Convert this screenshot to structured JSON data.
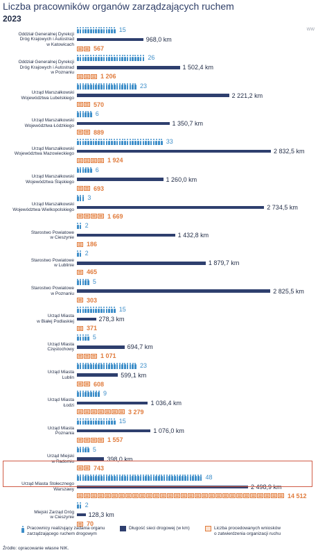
{
  "header": {
    "title": "Liczba pracowników organów zarządzających ruchem",
    "year": "2023",
    "watermark": "WW"
  },
  "legend": {
    "employees": "Pracownicy realizujący zadania organu\nzarządzającego ruchem drogowym",
    "road_length": "Długość sieci drogowej (w km)",
    "requests": "Liczba procedowanych wniosków\no zatwierdzenia organizacji ruchu"
  },
  "source": "Źródło: opracowanie własne NIK.",
  "colors": {
    "employees": "#3d8ec9",
    "road_length": "#2e3f6e",
    "requests": "#e07b3c",
    "highlight_border": "#d05b45"
  },
  "highlighted_category": "Urząd Miasta Stołecznego Warszawy",
  "chart_data": {
    "type": "bar",
    "title": "Liczba pracowników organów zarządzających ruchem",
    "subtitle": "2023",
    "categories": [
      "Oddział Generalnej Dyrekcji\nDróg Krajowych i Autostrad\nw Katowicach",
      "Oddział Generalnej Dyrekcji\nDróg Krajowych i Autostrad\nw Poznaniu",
      "Urząd Marszałkowski\nWojewództwa Lubelskiego",
      "Urząd Marszałkowski\nWojewództwa Łódzkiego",
      "Urząd Marszałkowski\nWojewództwa Mazowieckiego",
      "Urząd Marszałkowski\nWojewództwa Śląskiego",
      "Urząd Marszałkowski\nWojewództwa Wielkopolskiego",
      "Starostwo Powiatowe\nw Cieszynie",
      "Starostwo Powiatowe\nw Lublinie",
      "Starostwo Powiatowe\nw Poznaniu",
      "Urząd Miasta\nw Białej Podlaskiej",
      "Urząd Miasta\nCzęstochowy",
      "Urząd Miasta\nLublin",
      "Urząd Miasta\nŁodzi",
      "Urząd Miasta\nPoznania",
      "Urząd Miejski\nw Radomiu",
      "Urząd Miasta Stołecznego\nWarszawy",
      "Miejski Zarząd Dróg\nw Cieszynie"
    ],
    "series": [
      {
        "name": "Pracownicy realizujący zadania organu zarządzającego ruchem drogowym",
        "values": [
          15,
          26,
          23,
          6,
          33,
          6,
          3,
          2,
          2,
          5,
          15,
          5,
          23,
          9,
          15,
          5,
          48,
          2
        ],
        "labels": [
          "15",
          "26",
          "23",
          "6",
          "33",
          "6",
          "3",
          "2",
          "2",
          "5",
          "15",
          "5",
          "23",
          "9",
          "15",
          "5",
          "48",
          "2"
        ]
      },
      {
        "name": "Długość sieci drogowej (w km)",
        "values": [
          968.0,
          1502.4,
          2221.2,
          1350.7,
          2832.5,
          1260.0,
          2734.5,
          1432.8,
          1879.7,
          2825.5,
          278.3,
          694.7,
          599.1,
          1036.4,
          1076.0,
          398.0,
          2498.9,
          128.3
        ],
        "labels": [
          "968,0 km",
          "1 502,4 km",
          "2 221,2 km",
          "1 350,7 km",
          "2 832,5 km",
          "1 260,0 km",
          "2 734,5 km",
          "1 432,8 km",
          "1 879,7 km",
          "2 825,5 km",
          "278,3 km",
          "694,7 km",
          "599,1 km",
          "1 036,4 km",
          "1 076,0 km",
          "398,0 km",
          "2 498,9 km",
          "128,3 km"
        ]
      },
      {
        "name": "Liczba procedowanych wniosków o zatwierdzenia organizacji ruchu",
        "values": [
          567,
          1206,
          570,
          889,
          1924,
          693,
          1669,
          186,
          465,
          303,
          371,
          1071,
          608,
          3279,
          1557,
          743,
          14512,
          70
        ],
        "labels": [
          "567",
          "1 206",
          "570",
          "889",
          "1 924",
          "693",
          "1 669",
          "186",
          "465",
          "303",
          "371",
          "1 071",
          "608",
          "3 279",
          "1 557",
          "743",
          "14 512",
          "70"
        ]
      }
    ]
  }
}
